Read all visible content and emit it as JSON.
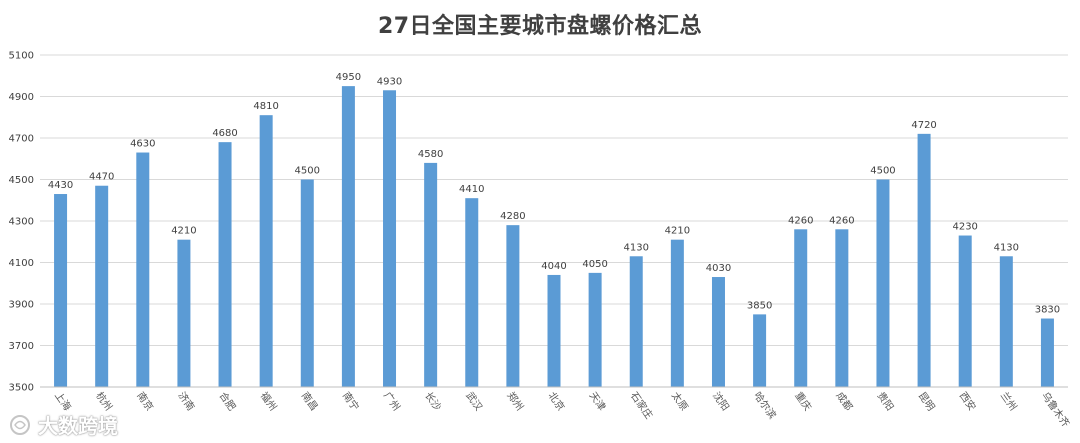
{
  "chart_data": {
    "type": "bar",
    "title": "27日全国主要城市盘螺价格汇总",
    "xlabel": "",
    "ylabel": "",
    "ylim": [
      3500,
      5100
    ],
    "yticks": [
      3500,
      3700,
      3900,
      4100,
      4300,
      4500,
      4700,
      4900,
      5100
    ],
    "grid": true,
    "categories": [
      "上海",
      "杭州",
      "南京",
      "济南",
      "合肥",
      "福州",
      "南昌",
      "南宁",
      "广州",
      "长沙",
      "武汉",
      "郑州",
      "北京",
      "天津",
      "石家庄",
      "太原",
      "沈阳",
      "哈尔滨",
      "重庆",
      "成都",
      "贵阳",
      "昆明",
      "西安",
      "兰州",
      "乌鲁木齐"
    ],
    "values": [
      4430,
      4470,
      4630,
      4210,
      4680,
      4810,
      4500,
      4950,
      4930,
      4580,
      4410,
      4280,
      4040,
      4050,
      4130,
      4210,
      4030,
      3850,
      4260,
      4260,
      4500,
      4720,
      4230,
      4130,
      3830
    ],
    "colors": {
      "bar": "#5b9bd5",
      "grid": "#d9d9d9",
      "text": "#404040"
    }
  },
  "watermark": {
    "text": "大数跨境",
    "icon": "brand-logo-icon"
  }
}
